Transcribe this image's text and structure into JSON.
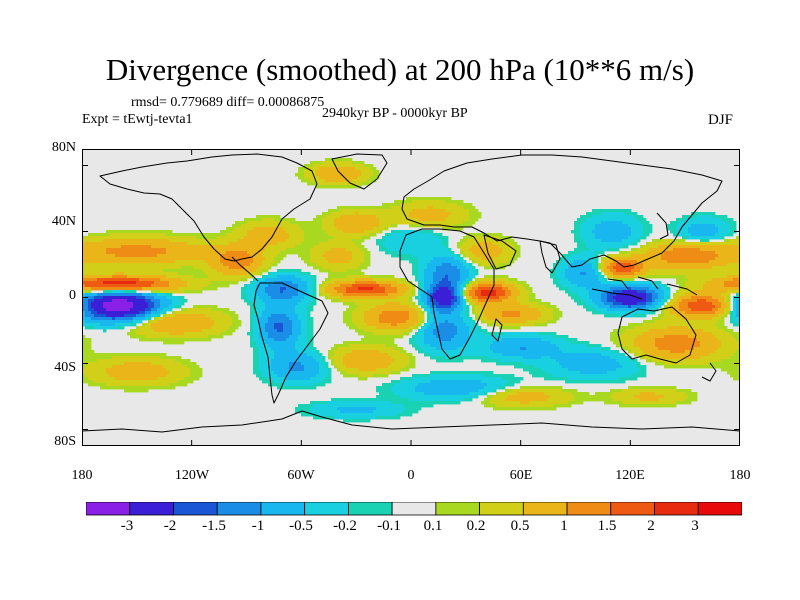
{
  "title": "Divergence (smoothed) at 200 hPa (10**6 m/s)",
  "stats": "rmsd= 0.779689 diff= 0.00086875",
  "experiment": "Expt = tEwtj-tevta1",
  "period": "2940kyr BP - 0000kyr BP",
  "season": "DJF",
  "y_axis": {
    "ticks": [
      "80N",
      "40N",
      "0",
      "40S",
      "80S"
    ],
    "values": [
      80,
      40,
      0,
      -40,
      -80
    ]
  },
  "x_axis": {
    "ticks": [
      "180",
      "120W",
      "60W",
      "0",
      "60E",
      "120E",
      "180"
    ],
    "values": [
      -180,
      -120,
      -60,
      0,
      60,
      120,
      180
    ]
  },
  "colorbar": {
    "labels": [
      "-3",
      "-2",
      "-1.5",
      "-1",
      "-0.5",
      "-0.2",
      "-0.1",
      "0.1",
      "0.2",
      "0.5",
      "1",
      "1.5",
      "2",
      "3"
    ],
    "colors": [
      "#8a1fe6",
      "#3a1fd6",
      "#1a55d6",
      "#1a8ee6",
      "#19b7f0",
      "#19d0e0",
      "#19d2b3",
      "#e8e8e8",
      "#a8d820",
      "#d2cf18",
      "#e9b518",
      "#ee8c16",
      "#ef5a12",
      "#e82a10",
      "#e80a0a"
    ]
  },
  "map_field": {
    "domain_lon": [
      -180,
      180
    ],
    "domain_lat": [
      -90,
      90
    ],
    "features": [
      {
        "lon": -160,
        "lat": -5,
        "amp": -3.6,
        "rlon": 22,
        "rlat": 9
      },
      {
        "lon": -160,
        "lat": 8,
        "amp": 2.6,
        "rlon": 30,
        "rlat": 5
      },
      {
        "lon": -150,
        "lat": 28,
        "amp": 1.2,
        "rlon": 38,
        "rlat": 8
      },
      {
        "lon": -130,
        "lat": -15,
        "amp": 1.1,
        "rlon": 25,
        "rlat": 8
      },
      {
        "lon": -70,
        "lat": 5,
        "amp": -1.5,
        "rlon": 15,
        "rlat": 8
      },
      {
        "lon": -72,
        "lat": -18,
        "amp": -1.6,
        "rlon": 11,
        "rlat": 12
      },
      {
        "lon": -62,
        "lat": -42,
        "amp": -1.1,
        "rlon": 16,
        "rlat": 9
      },
      {
        "lon": -95,
        "lat": 22,
        "amp": 1.3,
        "rlon": 14,
        "rlat": 9
      },
      {
        "lon": -78,
        "lat": 38,
        "amp": 0.8,
        "rlon": 16,
        "rlat": 8
      },
      {
        "lon": -40,
        "lat": 25,
        "amp": 0.7,
        "rlon": 14,
        "rlat": 8
      },
      {
        "lon": -30,
        "lat": 45,
        "amp": 1.0,
        "rlon": 15,
        "rlat": 7
      },
      {
        "lon": -25,
        "lat": 5,
        "amp": 2.1,
        "rlon": 20,
        "rlat": 5
      },
      {
        "lon": -8,
        "lat": -12,
        "amp": 1.4,
        "rlon": 18,
        "rlat": 8
      },
      {
        "lon": -25,
        "lat": -38,
        "amp": 0.9,
        "rlon": 20,
        "rlat": 8
      },
      {
        "lon": 0,
        "lat": 35,
        "amp": -0.5,
        "rlon": 18,
        "rlat": 9
      },
      {
        "lon": 10,
        "lat": 50,
        "amp": 0.7,
        "rlon": 20,
        "rlat": 8
      },
      {
        "lon": 20,
        "lat": 15,
        "amp": -1.4,
        "rlon": 12,
        "rlat": 10
      },
      {
        "lon": 18,
        "lat": 0,
        "amp": -2.6,
        "rlon": 10,
        "rlat": 8
      },
      {
        "lon": 18,
        "lat": -20,
        "amp": -1.3,
        "rlon": 14,
        "rlat": 12
      },
      {
        "lon": 40,
        "lat": 28,
        "amp": 0.8,
        "rlon": 14,
        "rlat": 8
      },
      {
        "lon": 42,
        "lat": 3,
        "amp": 2.3,
        "rlon": 14,
        "rlat": 6
      },
      {
        "lon": 55,
        "lat": -10,
        "amp": 1.1,
        "rlon": 18,
        "rlat": 6
      },
      {
        "lon": 60,
        "lat": -30,
        "amp": -1.0,
        "rlon": 20,
        "rlat": 7
      },
      {
        "lon": 95,
        "lat": 15,
        "amp": -1.1,
        "rlon": 12,
        "rlat": 9
      },
      {
        "lon": 110,
        "lat": 40,
        "amp": -0.8,
        "rlon": 15,
        "rlat": 10
      },
      {
        "lon": 115,
        "lat": 18,
        "amp": 1.9,
        "rlon": 12,
        "rlat": 6
      },
      {
        "lon": 120,
        "lat": 0,
        "amp": -2.8,
        "rlon": 16,
        "rlat": 7
      },
      {
        "lon": 150,
        "lat": 25,
        "amp": 1.4,
        "rlon": 22,
        "rlat": 8
      },
      {
        "lon": 160,
        "lat": 40,
        "amp": -0.8,
        "rlon": 14,
        "rlat": 8
      },
      {
        "lon": 160,
        "lat": -5,
        "amp": 2.0,
        "rlon": 18,
        "rlat": 7
      },
      {
        "lon": 145,
        "lat": -28,
        "amp": 1.3,
        "rlon": 25,
        "rlat": 10
      },
      {
        "lon": 100,
        "lat": -40,
        "amp": -0.8,
        "rlon": 25,
        "rlat": 9
      },
      {
        "lon": 25,
        "lat": -55,
        "amp": -0.9,
        "rlon": 30,
        "rlat": 7
      },
      {
        "lon": 60,
        "lat": -60,
        "amp": 0.8,
        "rlon": 25,
        "rlat": 6
      },
      {
        "lon": -30,
        "lat": -68,
        "amp": -0.6,
        "rlon": 25,
        "rlat": 5
      },
      {
        "lon": -40,
        "lat": 75,
        "amp": 1.0,
        "rlon": 15,
        "rlat": 6
      },
      {
        "lon": 130,
        "lat": -60,
        "amp": 0.6,
        "rlon": 20,
        "rlat": 5
      },
      {
        "lon": -150,
        "lat": -45,
        "amp": 0.8,
        "rlon": 25,
        "rlat": 8
      }
    ]
  }
}
